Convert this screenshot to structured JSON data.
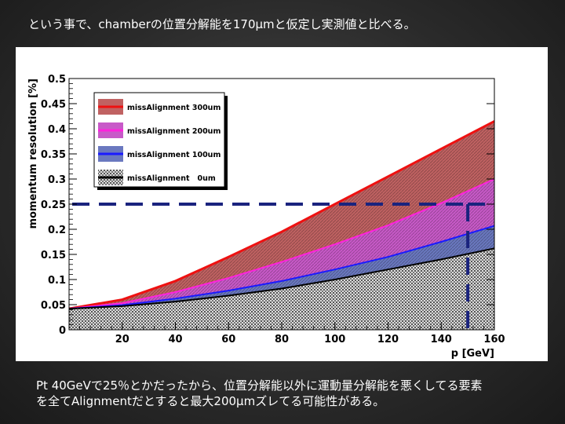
{
  "slide": {
    "title": "という事で、chamberの位置分解能を170μmと仮定し実測値と比べる。",
    "caption_line1": "Pt 40GeVで25％とかだったから、位置分解能以外に運動量分解能を悪くしてる要素",
    "caption_line2": "を全てAlignmentだとすると最大200μmズレてる可能性がある。"
  },
  "chart_data": {
    "type": "area",
    "title": "",
    "xlabel": "p [GeV]",
    "ylabel": "momentum resolution [%]",
    "xlim": [
      0,
      160
    ],
    "ylim": [
      0,
      0.5
    ],
    "x_ticks": [
      "20",
      "40",
      "60",
      "80",
      "100",
      "120",
      "140",
      "160"
    ],
    "y_ticks": [
      "0",
      "0.05",
      "0.1",
      "0.15",
      "0.2",
      "0.25",
      "0.3",
      "0.35",
      "0.4",
      "0.45",
      "0.5"
    ],
    "grid": false,
    "legend_position": "top-left",
    "x": [
      0,
      20,
      40,
      60,
      80,
      100,
      120,
      140,
      160
    ],
    "series": [
      {
        "name": "missAlignment 300um",
        "color": "#ee1111",
        "fill": "#c06262",
        "values": [
          0.042,
          0.06,
          0.097,
          0.145,
          0.195,
          0.25,
          0.305,
          0.36,
          0.415
        ]
      },
      {
        "name": "missAlignment 200um",
        "color": "#ff22dd",
        "fill": "#c85ac8",
        "values": [
          0.042,
          0.053,
          0.075,
          0.103,
          0.135,
          0.17,
          0.208,
          0.252,
          0.3
        ]
      },
      {
        "name": "missAlignment 100um",
        "color": "#1a1aff",
        "fill": "#6a78bf",
        "values": [
          0.042,
          0.049,
          0.062,
          0.078,
          0.097,
          0.12,
          0.145,
          0.175,
          0.207
        ]
      },
      {
        "name": "missAlignment   0um",
        "color": "#000000",
        "fill": "#bbbbbb",
        "values": [
          0.042,
          0.047,
          0.056,
          0.068,
          0.082,
          0.1,
          0.12,
          0.14,
          0.162
        ]
      }
    ],
    "reference_lines": {
      "color": "#1a237e",
      "y_value": 0.25,
      "x_value": 150
    }
  }
}
